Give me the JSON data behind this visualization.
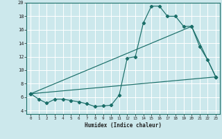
{
  "xlabel": "Humidex (Indice chaleur)",
  "bg_color": "#cce8ec",
  "grid_color": "#ffffff",
  "line_color": "#1a6e68",
  "xlim": [
    -0.5,
    23.5
  ],
  "ylim": [
    3.5,
    20.0
  ],
  "yticks": [
    4,
    6,
    8,
    10,
    12,
    14,
    16,
    18,
    20
  ],
  "xticks": [
    0,
    1,
    2,
    3,
    4,
    5,
    6,
    7,
    8,
    9,
    10,
    11,
    12,
    13,
    14,
    15,
    16,
    17,
    18,
    19,
    20,
    21,
    22,
    23
  ],
  "line1_x": [
    0,
    1,
    2,
    3,
    4,
    5,
    6,
    7,
    8,
    9,
    10,
    11,
    12,
    13,
    14,
    15,
    16,
    17,
    18,
    19,
    20,
    21,
    22,
    23
  ],
  "line1_y": [
    6.5,
    5.7,
    5.1,
    5.7,
    5.7,
    5.5,
    5.3,
    5.0,
    4.6,
    4.7,
    4.8,
    6.3,
    11.8,
    12.0,
    17.0,
    19.5,
    19.5,
    18.0,
    18.0,
    16.5,
    16.5,
    13.5,
    11.5,
    9.0
  ],
  "line2_x": [
    0,
    20,
    23
  ],
  "line2_y": [
    6.5,
    16.5,
    9.0
  ],
  "line3_x": [
    0,
    23
  ],
  "line3_y": [
    6.5,
    9.0
  ]
}
